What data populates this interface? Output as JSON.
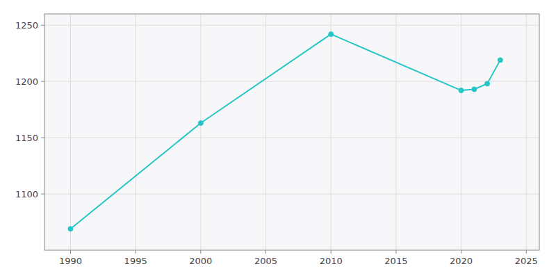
{
  "chart_data": {
    "type": "line",
    "x": [
      1990,
      2000,
      2010,
      2020,
      2021,
      2022,
      2023
    ],
    "values": [
      1069,
      1163,
      1242,
      1192,
      1193,
      1198,
      1219
    ],
    "color": "#26c6c6",
    "marker": "circle",
    "xlim": [
      1988,
      2026
    ],
    "ylim": [
      1050,
      1260
    ],
    "xticks": [
      1990,
      1995,
      2000,
      2005,
      2010,
      2015,
      2020,
      2025
    ],
    "yticks": [
      1100,
      1150,
      1200,
      1250
    ],
    "grid": true
  }
}
